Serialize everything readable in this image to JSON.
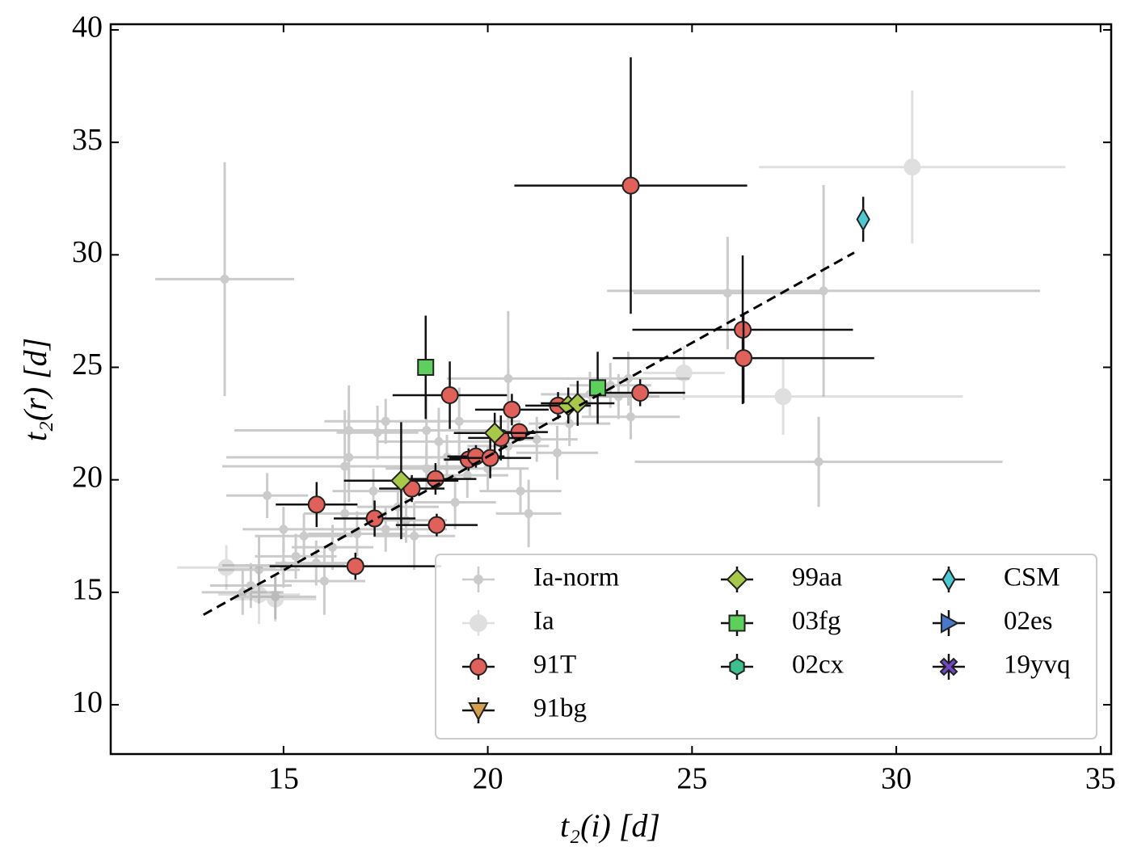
{
  "chart_data": {
    "type": "scatter",
    "xlabel": "t₂(i) [d]",
    "ylabel": "t₂(r) [d]",
    "xlim": [
      10.77,
      35.26
    ],
    "ylim": [
      7.81,
      40.25
    ],
    "xticks": [
      15,
      20,
      25,
      30,
      35
    ],
    "yticks": [
      10,
      15,
      20,
      25,
      30,
      35,
      40
    ],
    "legend": "lower right",
    "legend_columns": 3,
    "fit": {
      "color": "#000000",
      "x": [
        13.04,
        28.97
      ],
      "y": [
        14.0,
        30.1
      ]
    },
    "series": [
      {
        "name": "Ia-norm",
        "color": "#555555",
        "marker": "o",
        "alpha": 0.3,
        "x": [
          13.56,
          25.87,
          28.22,
          28.1,
          23.44,
          21.0,
          23.5,
          20.5,
          19.3,
          16.6,
          16.6,
          16.5,
          17.3,
          17.5,
          18.5,
          18.8,
          14.6,
          15.0,
          15.5,
          15.3,
          14.4,
          14.2,
          14.0,
          14.8,
          15.0,
          16.2,
          16.0,
          16.8,
          17.5,
          18.0,
          17.2,
          18.5,
          19.0,
          19.5,
          20.0,
          20.5,
          21.2,
          21.7,
          22.5,
          23.0,
          23.2,
          19.2,
          18.2,
          17.8,
          16.5,
          15.8,
          20.8,
          22.0
        ],
        "y": [
          28.92,
          28.3,
          28.4,
          20.8,
          24.5,
          18.5,
          22.8,
          24.5,
          22.6,
          22.2,
          21.0,
          20.6,
          22.1,
          22.6,
          22.2,
          21.7,
          19.3,
          17.8,
          17.5,
          16.6,
          16.0,
          15.3,
          15.0,
          14.8,
          16.2,
          17.0,
          15.5,
          17.6,
          17.8,
          18.2,
          19.5,
          20.5,
          21.0,
          20.2,
          20.5,
          21.5,
          21.8,
          21.2,
          23.8,
          24.2,
          23.7,
          19.0,
          17.5,
          18.8,
          18.5,
          16.3,
          19.5,
          22.5
        ],
        "xerr": [
          1.7,
          2.3,
          5.3,
          4.5,
          1.5,
          0.8,
          1.2,
          1.5,
          1.5,
          2.8,
          3,
          3,
          1,
          1.5,
          2,
          1.5,
          1,
          1,
          1.2,
          1,
          1,
          1,
          1,
          1,
          1.5,
          1,
          1,
          1.2,
          1.5,
          1,
          1,
          1,
          1.2,
          1,
          1,
          1,
          1,
          1,
          1.2,
          1,
          1,
          1,
          1,
          1,
          1,
          1,
          1,
          1
        ],
        "yerr": [
          5.2,
          2.5,
          4.7,
          2,
          1.2,
          1.5,
          1,
          3,
          1.5,
          2,
          2,
          2.5,
          1.2,
          1,
          1.5,
          1.5,
          1,
          1,
          1,
          1,
          1.5,
          1,
          1,
          1,
          1,
          1,
          1.5,
          1,
          1,
          1,
          1,
          1,
          1,
          1,
          1,
          1,
          1,
          1.2,
          1,
          1,
          1,
          1.2,
          1.5,
          1,
          1,
          1,
          1,
          1
        ]
      },
      {
        "name": "Ia",
        "color": "#999999",
        "marker": "o",
        "alpha": 0.3,
        "x": [
          30.39,
          24.8,
          27.23,
          13.6,
          14.4,
          14.8
        ],
        "y": [
          33.9,
          24.75,
          23.7,
          16.1,
          14.9,
          14.7
        ],
        "xerr": [
          3.75,
          1,
          4.4,
          1.2,
          1,
          1
        ],
        "yerr": [
          3.4,
          1.2,
          1.7,
          1,
          1.3,
          1
        ]
      },
      {
        "name": "91T",
        "color": "#e0605a",
        "marker": "o",
        "alpha": 1,
        "x": [
          23.5,
          26.24,
          26.26,
          23.73,
          21.72,
          19.07,
          20.59,
          20.77,
          20.32,
          19.53,
          19.71,
          20.06,
          18.72,
          18.14,
          15.81,
          17.23,
          18.75,
          16.76
        ],
        "y": [
          33.08,
          26.67,
          25.41,
          23.87,
          23.3,
          23.76,
          23.12,
          22.12,
          21.86,
          20.9,
          21.04,
          20.97,
          20.04,
          19.61,
          18.9,
          18.28,
          17.99,
          16.16
        ],
        "xerr": [
          2.85,
          2.7,
          3.2,
          1.1,
          0.8,
          1.4,
          0.9,
          0.7,
          0.8,
          0.6,
          0.7,
          1.0,
          1.0,
          0.8,
          1.0,
          1.0,
          1.0,
          2.1
        ],
        "yerr": [
          5.7,
          3.3,
          2.0,
          0.6,
          0.6,
          1.5,
          0.7,
          0.4,
          1.0,
          0.5,
          0.5,
          0.9,
          0.7,
          0.6,
          1.0,
          0.8,
          0.5,
          0.6
        ]
      },
      {
        "name": "91bg",
        "color": "#d4a050",
        "marker": "v",
        "alpha": 1,
        "x": [],
        "y": [],
        "xerr": [],
        "yerr": []
      },
      {
        "name": "99aa",
        "color": "#a8c84a",
        "marker": "D",
        "alpha": 1,
        "x": [
          17.88,
          20.17,
          21.97,
          22.2
        ],
        "y": [
          19.96,
          22.08,
          23.3,
          23.4
        ],
        "xerr": [
          1.4,
          1.0,
          0.5,
          0.9
        ],
        "yerr": [
          2.6,
          0.9,
          0.8,
          1.0
        ]
      },
      {
        "name": "03fg",
        "color": "#5ccf5c",
        "marker": "s",
        "alpha": 1,
        "x": [
          18.48,
          22.69
        ],
        "y": [
          25.0,
          24.09
        ],
        "xerr": [
          0.1,
          0.2
        ],
        "yerr": [
          2.3,
          1.6
        ]
      },
      {
        "name": "02cx",
        "color": "#3fbf8f",
        "marker": "h",
        "alpha": 1,
        "x": [],
        "y": [],
        "xerr": [],
        "yerr": []
      },
      {
        "name": "CSM",
        "color": "#4fc8d0",
        "marker": "d",
        "alpha": 1,
        "x": [
          29.19
        ],
        "y": [
          31.58
        ],
        "xerr": [
          0.05
        ],
        "yerr": [
          1.0
        ]
      },
      {
        "name": "02es",
        "color": "#4a78c8",
        "marker": ">",
        "alpha": 1,
        "x": [],
        "y": [],
        "xerr": [],
        "yerr": []
      },
      {
        "name": "19yvq",
        "color": "#7048c8",
        "marker": "X",
        "alpha": 1,
        "x": [],
        "y": [],
        "xerr": [],
        "yerr": []
      }
    ]
  }
}
